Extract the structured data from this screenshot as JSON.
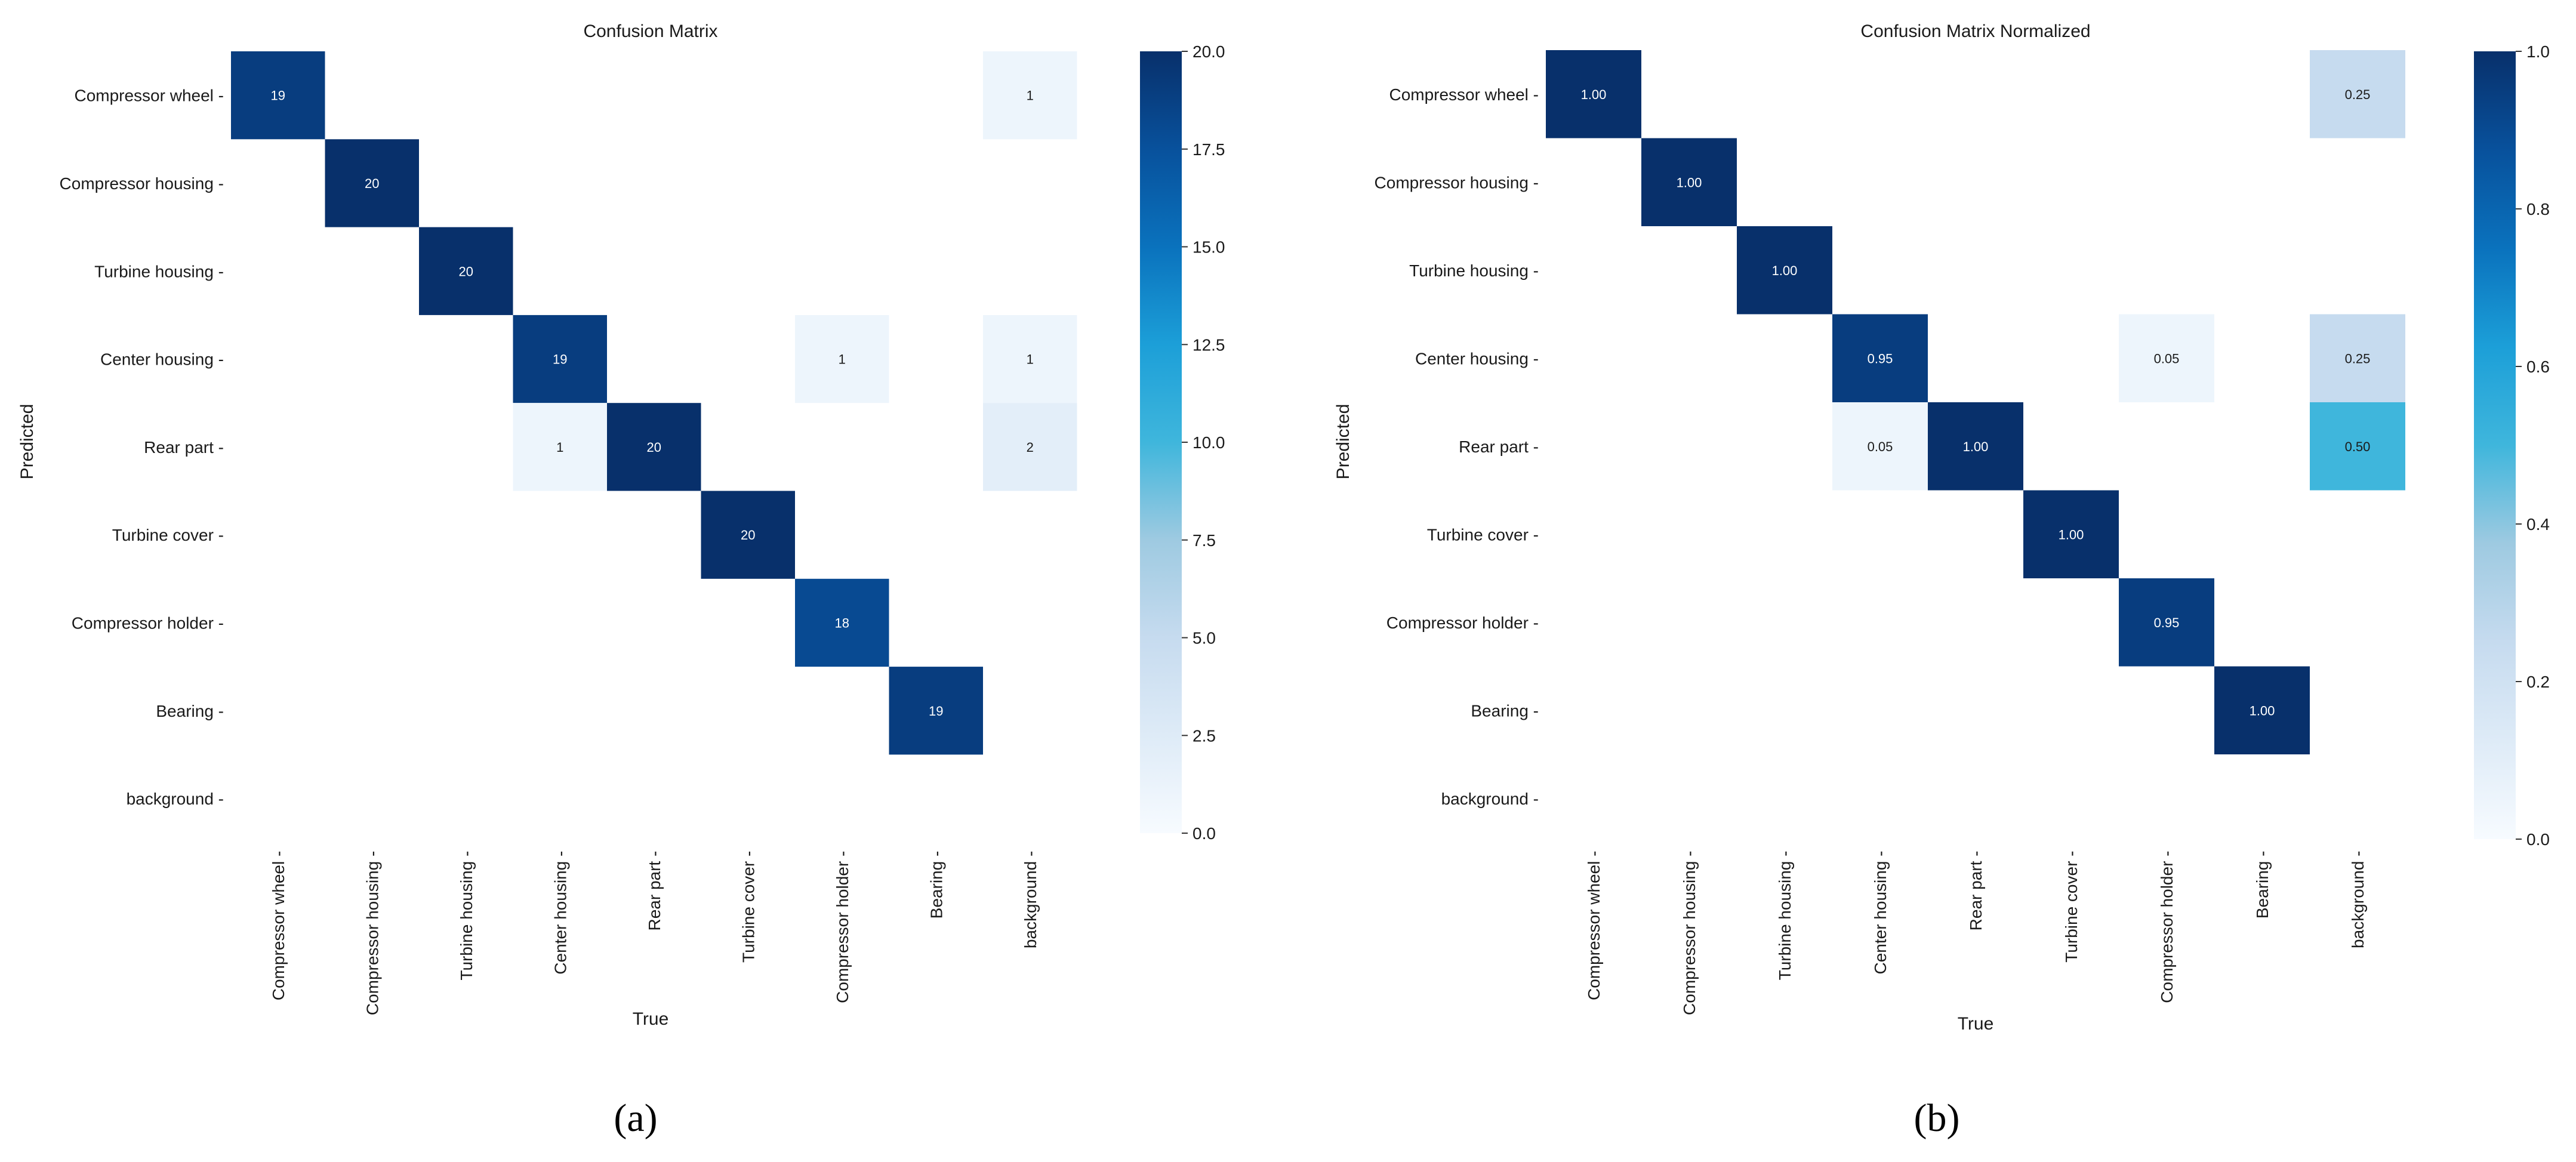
{
  "chart_data": [
    {
      "type": "heatmap",
      "panel_label": "(a)",
      "title": "Confusion Matrix",
      "xlabel": "True",
      "ylabel": "Predicted",
      "rows": [
        "Compressor wheel",
        "Compressor housing",
        "Turbine housing",
        "Center housing",
        "Rear part",
        "Turbine cover",
        "Compressor holder",
        "Bearing",
        "background"
      ],
      "columns": [
        "Compressor wheel",
        "Compressor housing",
        "Turbine housing",
        "Center housing",
        "Rear part",
        "Turbine cover",
        "Compressor holder",
        "Bearing",
        "background"
      ],
      "values": [
        [
          19,
          null,
          null,
          null,
          null,
          null,
          null,
          null,
          1
        ],
        [
          null,
          20,
          null,
          null,
          null,
          null,
          null,
          null,
          null
        ],
        [
          null,
          null,
          20,
          null,
          null,
          null,
          null,
          null,
          null
        ],
        [
          null,
          null,
          null,
          19,
          null,
          null,
          1,
          null,
          1
        ],
        [
          null,
          null,
          null,
          1,
          20,
          null,
          null,
          null,
          2
        ],
        [
          null,
          null,
          null,
          null,
          null,
          20,
          null,
          null,
          null
        ],
        [
          null,
          null,
          null,
          null,
          null,
          null,
          18,
          null,
          null
        ],
        [
          null,
          null,
          null,
          null,
          null,
          null,
          null,
          19,
          null
        ],
        [
          null,
          null,
          null,
          null,
          null,
          null,
          null,
          null,
          null
        ]
      ],
      "cell_labels": [
        [
          "19",
          "",
          "",
          "",
          "",
          "",
          "",
          "",
          "1"
        ],
        [
          "",
          "20",
          "",
          "",
          "",
          "",
          "",
          "",
          ""
        ],
        [
          "",
          "",
          "20",
          "",
          "",
          "",
          "",
          "",
          ""
        ],
        [
          "",
          "",
          "",
          "19",
          "",
          "",
          "1",
          "",
          "1"
        ],
        [
          "",
          "",
          "",
          "1",
          "20",
          "",
          "",
          "",
          "2"
        ],
        [
          "",
          "",
          "",
          "",
          "",
          "20",
          "",
          "",
          ""
        ],
        [
          "",
          "",
          "",
          "",
          "",
          "",
          "18",
          "",
          ""
        ],
        [
          "",
          "",
          "",
          "",
          "",
          "",
          "",
          "19",
          ""
        ],
        [
          "",
          "",
          "",
          "",
          "",
          "",
          "",
          "",
          ""
        ]
      ],
      "colorbar": {
        "min": 0,
        "max": 20,
        "ticks": [
          0,
          2.5,
          5,
          7.5,
          10,
          12.5,
          15,
          17.5,
          20
        ],
        "tick_labels": [
          "0.0",
          "2.5",
          "5.0",
          "7.5",
          "10.0",
          "12.5",
          "15.0",
          "17.5",
          "20.0"
        ]
      },
      "colormap": "Blues"
    },
    {
      "type": "heatmap",
      "panel_label": "(b)",
      "title": "Confusion Matrix Normalized",
      "xlabel": "True",
      "ylabel": "Predicted",
      "rows": [
        "Compressor wheel",
        "Compressor housing",
        "Turbine housing",
        "Center housing",
        "Rear part",
        "Turbine cover",
        "Compressor holder",
        "Bearing",
        "background"
      ],
      "columns": [
        "Compressor wheel",
        "Compressor housing",
        "Turbine housing",
        "Center housing",
        "Rear part",
        "Turbine cover",
        "Compressor holder",
        "Bearing",
        "background"
      ],
      "values": [
        [
          1.0,
          null,
          null,
          null,
          null,
          null,
          null,
          null,
          0.25
        ],
        [
          null,
          1.0,
          null,
          null,
          null,
          null,
          null,
          null,
          null
        ],
        [
          null,
          null,
          1.0,
          null,
          null,
          null,
          null,
          null,
          null
        ],
        [
          null,
          null,
          null,
          0.95,
          null,
          null,
          0.05,
          null,
          0.25
        ],
        [
          null,
          null,
          null,
          0.05,
          1.0,
          null,
          null,
          null,
          0.5
        ],
        [
          null,
          null,
          null,
          null,
          null,
          1.0,
          null,
          null,
          null
        ],
        [
          null,
          null,
          null,
          null,
          null,
          null,
          0.95,
          null,
          null
        ],
        [
          null,
          null,
          null,
          null,
          null,
          null,
          null,
          1.0,
          null
        ],
        [
          null,
          null,
          null,
          null,
          null,
          null,
          null,
          null,
          null
        ]
      ],
      "cell_labels": [
        [
          "1.00",
          "",
          "",
          "",
          "",
          "",
          "",
          "",
          "0.25"
        ],
        [
          "",
          "1.00",
          "",
          "",
          "",
          "",
          "",
          "",
          ""
        ],
        [
          "",
          "",
          "1.00",
          "",
          "",
          "",
          "",
          "",
          ""
        ],
        [
          "",
          "",
          "",
          "0.95",
          "",
          "",
          "0.05",
          "",
          "0.25"
        ],
        [
          "",
          "",
          "",
          "0.05",
          "1.00",
          "",
          "",
          "",
          "0.50"
        ],
        [
          "",
          "",
          "",
          "",
          "",
          "1.00",
          "",
          "",
          ""
        ],
        [
          "",
          "",
          "",
          "",
          "",
          "",
          "0.95",
          "",
          ""
        ],
        [
          "",
          "",
          "",
          "",
          "",
          "",
          "",
          "1.00",
          ""
        ],
        [
          "",
          "",
          "",
          "",
          "",
          "",
          "",
          "",
          ""
        ]
      ],
      "colorbar": {
        "min": 0,
        "max": 1,
        "ticks": [
          0,
          0.2,
          0.4,
          0.6,
          0.8,
          1.0
        ],
        "tick_labels": [
          "0.0",
          "0.2",
          "0.4",
          "0.6",
          "0.8",
          "1.0"
        ]
      },
      "colormap": "Blues"
    }
  ]
}
